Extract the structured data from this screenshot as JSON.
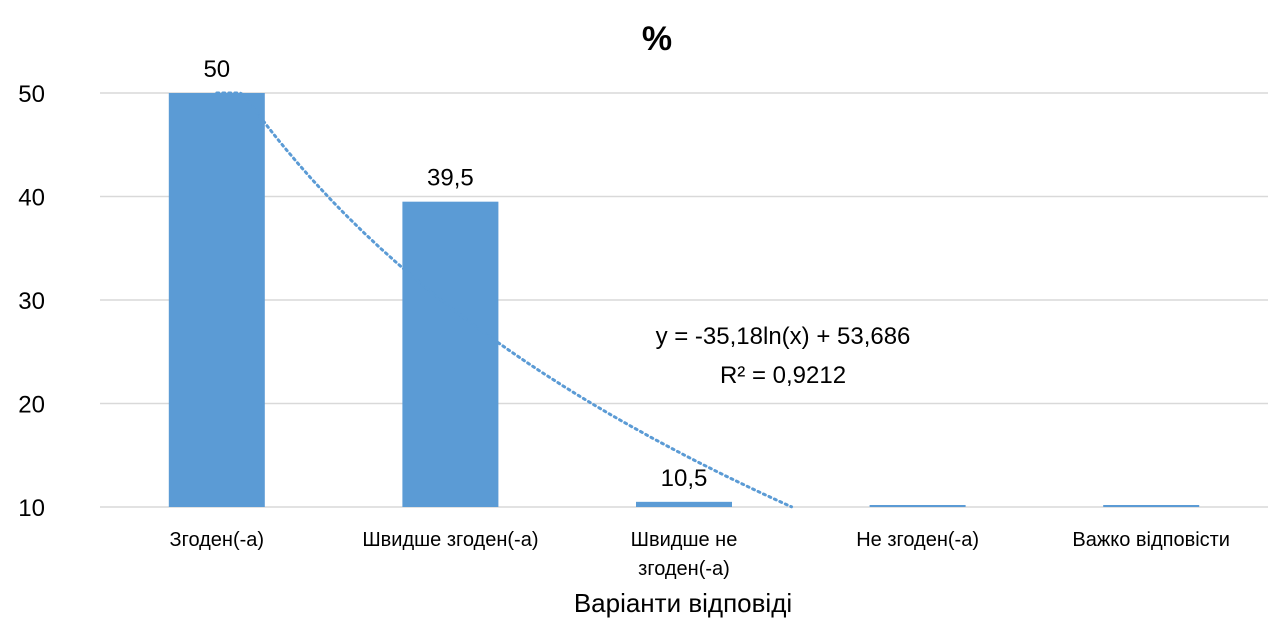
{
  "chart_data": {
    "type": "bar",
    "title": "%",
    "xlabel": "Варіанти відповіді",
    "ylabel": "",
    "categories": [
      [
        "Згоден(-а)"
      ],
      [
        "Швидше згоден(-а)"
      ],
      [
        "Швидше не",
        "згоден(-а)"
      ],
      [
        "Не згоден(-а)"
      ],
      [
        "Важко відповісти"
      ]
    ],
    "values": [
      50,
      39.5,
      10.5,
      10,
      10
    ],
    "data_labels": [
      "50",
      "39,5",
      "10,5",
      "",
      ""
    ],
    "ylim": [
      10,
      50
    ],
    "yticks": [
      "10",
      "20",
      "30",
      "40",
      "50"
    ],
    "grid": true,
    "bar_color": "#5b9bd5",
    "trendline": {
      "type": "logarithmic",
      "a": -35.18,
      "b": 53.686,
      "equation": "y = -35,18ln(x) + 53,686",
      "r_squared": "R² = 0,9212",
      "color": "#5b9bd5",
      "style": "dotted"
    }
  }
}
